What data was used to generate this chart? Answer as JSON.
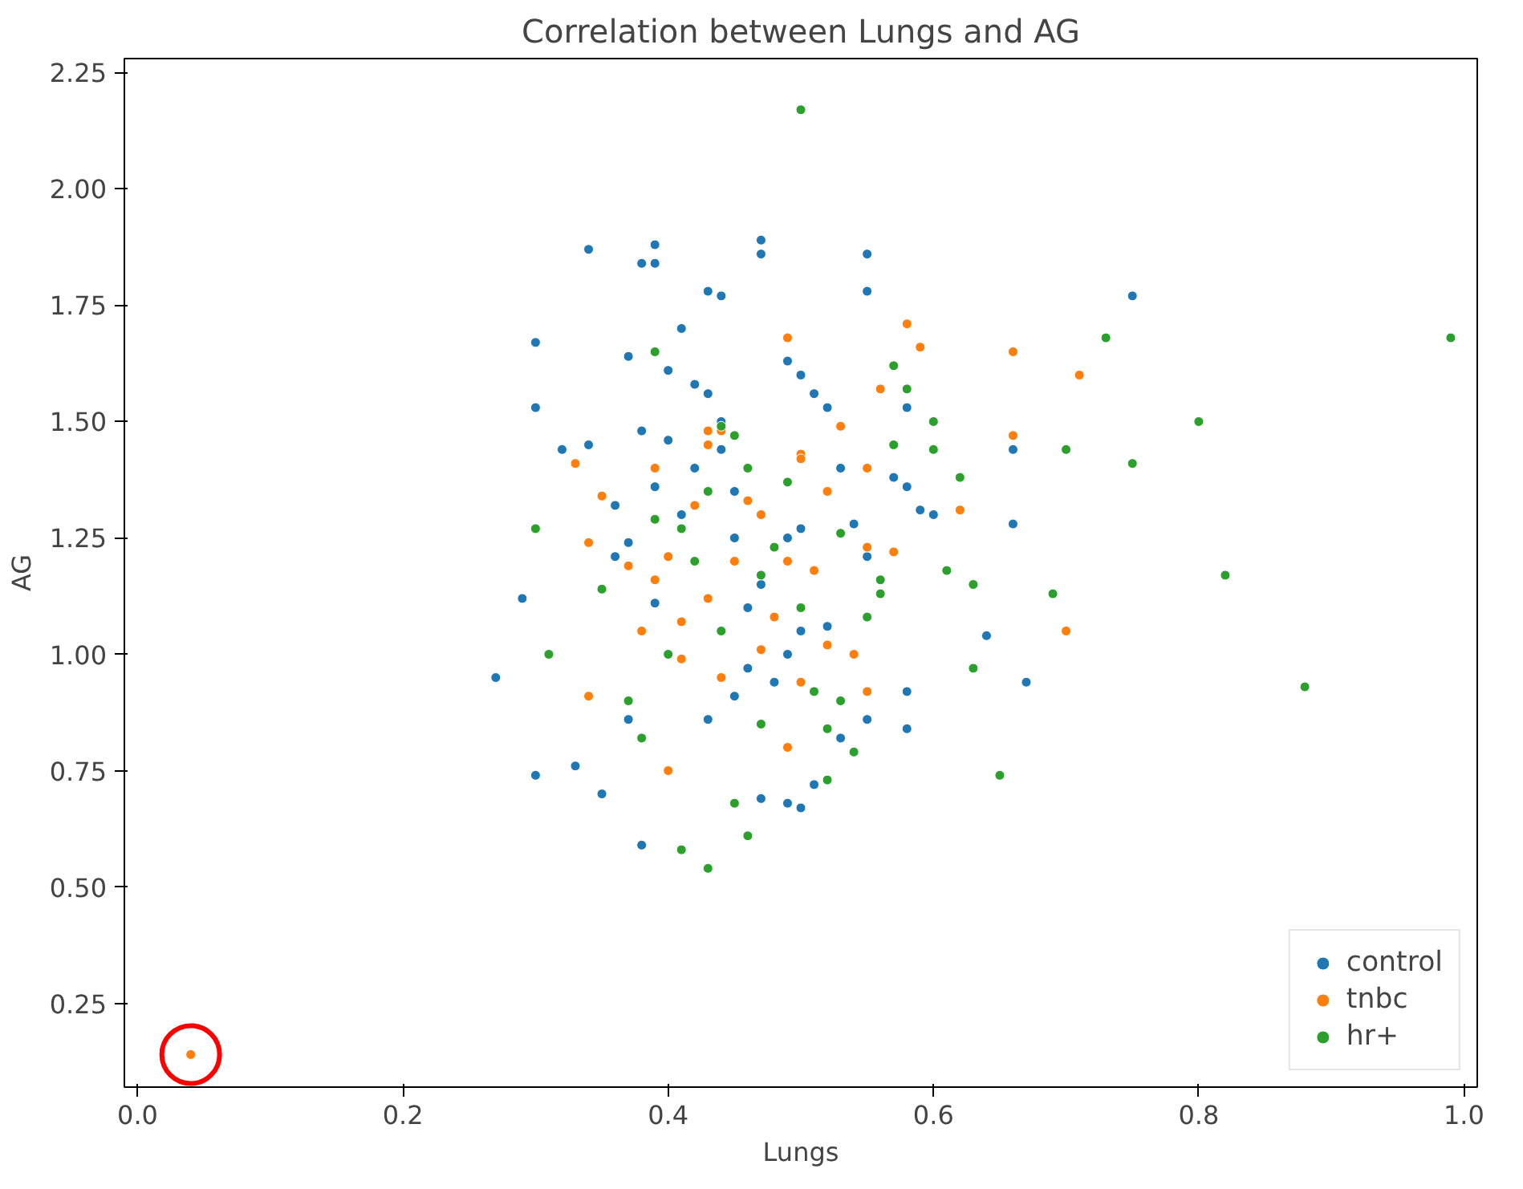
{
  "chart_data": {
    "type": "scatter",
    "title": "Correlation between Lungs and AG",
    "xlabel": "Lungs",
    "ylabel": "AG",
    "xlim": [
      -0.01,
      1.01
    ],
    "ylim": [
      0.07,
      2.28
    ],
    "xticks": [
      {
        "value": 0,
        "label": "0.0"
      },
      0.2,
      0.4,
      0.6,
      0.8,
      {
        "value": 1,
        "label": "1.0"
      }
    ],
    "yticks": [
      0.25,
      {
        "value": 0.5,
        "label": "0.50"
      },
      0.75,
      {
        "value": 1,
        "label": "1.00"
      },
      1.25,
      {
        "value": 1.5,
        "label": "1.50"
      },
      1.75,
      {
        "value": 2,
        "label": "2.00"
      },
      2.25
    ],
    "marker": "circle",
    "legend": "bottom right",
    "grid": false,
    "series": [
      {
        "name": "control",
        "color": "#1f77b4",
        "x": [
          0.27,
          0.29,
          0.3,
          0.3,
          0.3,
          0.31,
          0.32,
          0.34,
          0.33,
          0.34,
          0.35,
          0.36,
          0.37,
          0.37,
          0.38,
          0.39,
          0.39,
          0.37,
          0.38,
          0.43,
          0.44,
          0.41,
          0.47,
          0.47,
          0.55,
          0.55,
          0.75,
          0.4,
          0.42,
          0.43,
          0.38,
          0.4,
          0.44,
          0.49,
          0.5,
          0.51,
          0.52,
          0.58,
          0.36,
          0.39,
          0.42,
          0.41,
          0.45,
          0.46,
          0.47,
          0.49,
          0.5,
          0.45,
          0.43,
          0.46,
          0.48,
          0.5,
          0.49,
          0.52,
          0.54,
          0.55,
          0.57,
          0.58,
          0.59,
          0.6,
          0.66,
          0.66,
          0.64,
          0.67,
          0.58,
          0.58,
          0.55,
          0.47,
          0.49,
          0.5,
          0.39,
          0.45,
          0.51,
          0.53,
          0.44,
          0.53
        ],
        "values": [
          0.95,
          1.12,
          1.53,
          1.67,
          0.74,
          1.0,
          1.44,
          1.87,
          0.76,
          1.45,
          0.7,
          1.32,
          1.64,
          1.24,
          1.84,
          1.88,
          1.84,
          0.86,
          0.59,
          1.78,
          1.77,
          1.7,
          1.89,
          1.86,
          1.86,
          1.78,
          1.77,
          1.61,
          1.58,
          1.56,
          1.48,
          1.46,
          1.5,
          1.63,
          1.6,
          1.56,
          1.53,
          1.53,
          1.21,
          1.36,
          1.4,
          1.3,
          1.35,
          1.1,
          1.15,
          1.25,
          1.27,
          1.25,
          0.86,
          0.97,
          0.94,
          1.05,
          1.0,
          1.06,
          1.28,
          1.21,
          1.38,
          1.36,
          1.31,
          1.3,
          1.44,
          1.28,
          1.04,
          0.94,
          0.92,
          0.84,
          0.86,
          0.69,
          0.68,
          0.67,
          1.11,
          0.91,
          0.72,
          0.82,
          1.44,
          1.4
        ]
      },
      {
        "name": "tnbc",
        "color": "#ff7f0e",
        "x": [
          0.04,
          0.33,
          0.34,
          0.35,
          0.34,
          0.37,
          0.39,
          0.4,
          0.38,
          0.41,
          0.42,
          0.43,
          0.43,
          0.44,
          0.46,
          0.47,
          0.49,
          0.5,
          0.5,
          0.52,
          0.55,
          0.56,
          0.58,
          0.59,
          0.66,
          0.71,
          0.62,
          0.66,
          0.45,
          0.47,
          0.48,
          0.5,
          0.49,
          0.51,
          0.52,
          0.55,
          0.54,
          0.4,
          0.44,
          0.41,
          0.39,
          0.55,
          0.57,
          0.53,
          0.7,
          0.43,
          0.49
        ],
        "values": [
          0.14,
          1.41,
          1.24,
          1.34,
          0.91,
          1.19,
          1.16,
          1.21,
          1.05,
          0.99,
          1.32,
          1.45,
          1.48,
          1.48,
          1.33,
          1.3,
          1.68,
          1.43,
          1.42,
          1.35,
          1.4,
          1.57,
          1.71,
          1.66,
          1.65,
          1.6,
          1.31,
          1.47,
          1.2,
          1.01,
          1.08,
          0.94,
          0.8,
          1.18,
          1.02,
          0.92,
          1.0,
          0.75,
          0.95,
          1.07,
          1.4,
          1.23,
          1.22,
          1.49,
          1.05,
          1.12,
          1.2
        ]
      },
      {
        "name": "hr+",
        "color": "#2ca02c",
        "x": [
          0.3,
          0.31,
          0.35,
          0.37,
          0.38,
          0.39,
          0.4,
          0.41,
          0.43,
          0.45,
          0.46,
          0.5,
          0.39,
          0.42,
          0.43,
          0.44,
          0.45,
          0.46,
          0.47,
          0.48,
          0.5,
          0.51,
          0.52,
          0.53,
          0.54,
          0.55,
          0.56,
          0.57,
          0.58,
          0.57,
          0.6,
          0.6,
          0.61,
          0.62,
          0.63,
          0.65,
          0.63,
          0.69,
          0.7,
          0.73,
          0.75,
          0.8,
          0.82,
          0.88,
          0.99,
          0.52,
          0.56,
          0.47,
          0.44,
          0.49,
          0.41,
          0.53
        ],
        "values": [
          1.27,
          1.0,
          1.14,
          0.9,
          0.82,
          1.65,
          1.0,
          0.58,
          0.54,
          0.68,
          0.61,
          2.17,
          1.29,
          1.2,
          1.35,
          1.49,
          1.47,
          1.4,
          1.17,
          1.23,
          1.1,
          0.92,
          0.84,
          0.9,
          0.79,
          1.08,
          1.13,
          1.62,
          1.57,
          1.45,
          1.5,
          1.44,
          1.18,
          1.38,
          0.97,
          0.74,
          1.15,
          1.13,
          1.44,
          1.68,
          1.41,
          1.5,
          1.17,
          0.93,
          1.68,
          0.73,
          1.16,
          0.85,
          1.05,
          1.37,
          1.27,
          1.26
        ]
      }
    ]
  }
}
